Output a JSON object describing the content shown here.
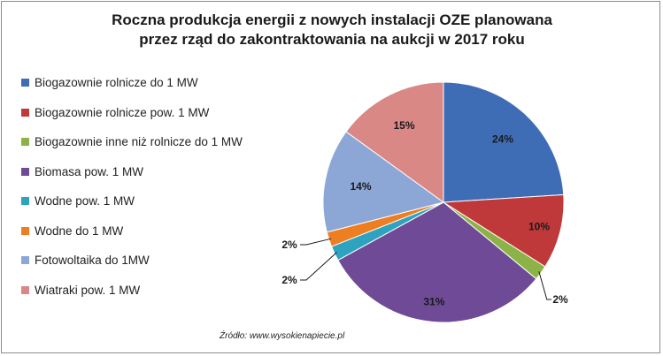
{
  "chart_data": {
    "type": "pie",
    "title": [
      "Roczna produkcja energii z nowych instalacji OZE planowana",
      "przez rząd do zakontraktowania na aukcji w 2017 roku"
    ],
    "categories": [
      "Biogazownie rolnicze do 1 MW",
      "Biogazownie rolnicze pow. 1 MW",
      "Biogazownie inne niż rolnicze do 1 MW",
      "Biomasa pow. 1 MW",
      "Wodne pow. 1 MW",
      "Wodne do 1 MW",
      "Fotowoltaika do 1MW",
      "Wiatraki pow. 1 MW"
    ],
    "values": [
      24,
      10,
      2,
      31,
      2,
      2,
      14,
      15
    ],
    "data_labels": [
      "24%",
      "10%",
      "2%",
      "31%",
      "2%",
      "2%",
      "14%",
      "15%"
    ],
    "colors": [
      "#3e6db5",
      "#c0393a",
      "#8cb347",
      "#6e4a97",
      "#2ea3bf",
      "#ee7e22",
      "#8ca7d6",
      "#d98886"
    ],
    "legend_position": "left"
  },
  "source": "Źródło: www.wysokienapiecie.pl"
}
